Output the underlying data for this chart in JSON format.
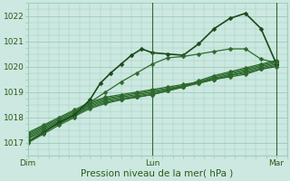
{
  "title": "Pression niveau de la mer( hPa )",
  "ylim": [
    1016.5,
    1022.5
  ],
  "yticks": [
    1017,
    1018,
    1019,
    1020,
    1021,
    1022
  ],
  "xtick_labels": [
    "Dim",
    "Lun",
    "Mar"
  ],
  "xtick_positions": [
    0,
    24,
    48
  ],
  "background_color": "#cce8e0",
  "grid_color": "#99ccbb",
  "total_hours": 50,
  "series": [
    {
      "x": [
        0,
        3,
        6,
        9,
        12,
        15,
        18,
        21,
        24,
        27,
        30,
        33,
        36,
        39,
        42,
        45,
        48
      ],
      "y": [
        1017.4,
        1017.7,
        1018.0,
        1018.3,
        1018.6,
        1018.8,
        1018.9,
        1019.0,
        1019.1,
        1019.2,
        1019.3,
        1019.4,
        1019.5,
        1019.6,
        1019.7,
        1019.9,
        1020.0
      ],
      "ms": 2.5,
      "lw": 0.9,
      "color": "#2d6a2d"
    },
    {
      "x": [
        0,
        3,
        6,
        9,
        12,
        15,
        18,
        21,
        24,
        27,
        30,
        33,
        36,
        39,
        42,
        45,
        48
      ],
      "y": [
        1017.35,
        1017.65,
        1017.95,
        1018.25,
        1018.55,
        1018.75,
        1018.85,
        1018.95,
        1019.05,
        1019.15,
        1019.25,
        1019.35,
        1019.5,
        1019.65,
        1019.75,
        1019.9,
        1020.05
      ],
      "ms": 2.5,
      "lw": 0.9,
      "color": "#2d6a2d"
    },
    {
      "x": [
        0,
        3,
        6,
        9,
        12,
        15,
        18,
        21,
        24,
        27,
        30,
        33,
        36,
        39,
        42,
        45,
        48
      ],
      "y": [
        1017.3,
        1017.6,
        1017.9,
        1018.2,
        1018.5,
        1018.7,
        1018.8,
        1018.9,
        1019.0,
        1019.1,
        1019.2,
        1019.35,
        1019.5,
        1019.65,
        1019.8,
        1019.95,
        1020.1
      ],
      "ms": 2.5,
      "lw": 0.9,
      "color": "#2d6a2d"
    },
    {
      "x": [
        0,
        3,
        6,
        9,
        12,
        15,
        18,
        21,
        24,
        27,
        30,
        33,
        36,
        39,
        42,
        45,
        48
      ],
      "y": [
        1017.25,
        1017.55,
        1017.85,
        1018.15,
        1018.45,
        1018.65,
        1018.75,
        1018.85,
        1018.95,
        1019.1,
        1019.25,
        1019.4,
        1019.55,
        1019.7,
        1019.85,
        1020.0,
        1020.15
      ],
      "ms": 2.5,
      "lw": 0.9,
      "color": "#2d6a2d"
    },
    {
      "x": [
        0,
        3,
        6,
        9,
        12,
        15,
        18,
        21,
        24,
        27,
        30,
        33,
        36,
        39,
        42,
        45,
        48
      ],
      "y": [
        1017.2,
        1017.5,
        1017.8,
        1018.1,
        1018.4,
        1018.6,
        1018.7,
        1018.8,
        1018.9,
        1019.05,
        1019.2,
        1019.4,
        1019.6,
        1019.75,
        1019.9,
        1020.05,
        1020.2
      ],
      "ms": 2.5,
      "lw": 0.9,
      "color": "#2d6a2d"
    },
    {
      "x": [
        0,
        3,
        6,
        9,
        12,
        15,
        18,
        21,
        24,
        27,
        30,
        33,
        36,
        39,
        42,
        45,
        48
      ],
      "y": [
        1017.15,
        1017.45,
        1017.75,
        1018.05,
        1018.35,
        1018.55,
        1018.7,
        1018.8,
        1018.9,
        1019.05,
        1019.2,
        1019.45,
        1019.65,
        1019.8,
        1019.95,
        1020.1,
        1020.25
      ],
      "ms": 2.5,
      "lw": 0.9,
      "color": "#2d6a2d"
    },
    {
      "x": [
        0,
        3,
        6,
        9,
        12,
        14,
        16,
        18,
        20,
        22,
        24,
        27,
        30,
        33,
        36,
        39,
        42,
        45,
        48
      ],
      "y": [
        1017.05,
        1017.4,
        1017.8,
        1018.1,
        1018.7,
        1019.35,
        1019.75,
        1020.1,
        1020.45,
        1020.7,
        1020.55,
        1020.5,
        1020.45,
        1020.9,
        1021.5,
        1021.9,
        1022.1,
        1021.5,
        1020.1
      ],
      "ms": 2.5,
      "lw": 1.2,
      "color": "#1a4a1a"
    },
    {
      "x": [
        0,
        3,
        6,
        9,
        12,
        15,
        18,
        21,
        24,
        27,
        30,
        33,
        36,
        39,
        42,
        45,
        48
      ],
      "y": [
        1017.0,
        1017.35,
        1017.7,
        1018.0,
        1018.6,
        1019.0,
        1019.4,
        1019.75,
        1020.1,
        1020.35,
        1020.4,
        1020.5,
        1020.6,
        1020.7,
        1020.7,
        1020.3,
        1020.15
      ],
      "ms": 2.5,
      "lw": 0.9,
      "color": "#2d6a2d"
    }
  ],
  "vline_positions": [
    24,
    48
  ],
  "vline_color": "#336633",
  "vline_lw": 0.8
}
